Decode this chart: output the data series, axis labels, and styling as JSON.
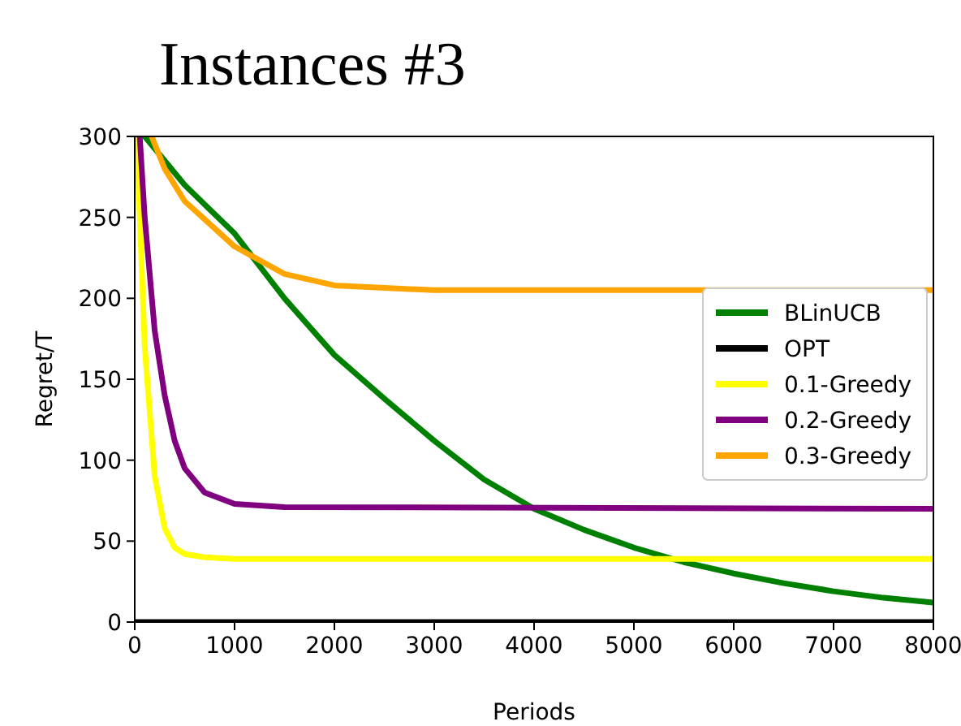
{
  "chart_data": {
    "type": "line",
    "title": "Instances #3",
    "xlabel": "Periods",
    "ylabel": "Regret/T",
    "xlim": [
      0,
      8000
    ],
    "ylim": [
      0,
      300
    ],
    "xticks": [
      0,
      1000,
      2000,
      3000,
      4000,
      5000,
      6000,
      7000,
      8000
    ],
    "yticks": [
      0,
      50,
      100,
      150,
      200,
      250,
      300
    ],
    "grid": false,
    "legend": "right",
    "line_style": "solid",
    "marker": "none",
    "series": [
      {
        "name": "BLinUCB",
        "color": "#008000",
        "x": [
          100,
          500,
          1000,
          1500,
          2000,
          2500,
          3000,
          3500,
          4000,
          4500,
          5000,
          5500,
          6000,
          6500,
          7000,
          7500,
          8000
        ],
        "values": [
          300,
          270,
          240,
          200,
          165,
          138,
          112,
          88,
          70,
          57,
          46,
          37,
          30,
          24,
          19,
          15,
          12
        ]
      },
      {
        "name": "OPT",
        "color": "#000000",
        "x": [
          0,
          8000
        ],
        "values": [
          0,
          0
        ]
      },
      {
        "name": "0.1-Greedy",
        "color": "#ffff00",
        "x": [
          20,
          100,
          200,
          300,
          400,
          500,
          700,
          1000,
          8000
        ],
        "values": [
          300,
          170,
          90,
          58,
          46,
          42,
          40,
          39,
          39
        ]
      },
      {
        "name": "0.2-Greedy",
        "color": "#800080",
        "x": [
          50,
          100,
          200,
          300,
          400,
          500,
          700,
          1000,
          1500,
          8000
        ],
        "values": [
          300,
          250,
          180,
          140,
          112,
          95,
          80,
          73,
          71,
          70
        ]
      },
      {
        "name": "0.3-Greedy",
        "color": "#ffa500",
        "x": [
          170,
          300,
          500,
          1000,
          1500,
          2000,
          3000,
          8000
        ],
        "values": [
          300,
          280,
          260,
          232,
          215,
          208,
          205,
          205
        ]
      }
    ]
  }
}
